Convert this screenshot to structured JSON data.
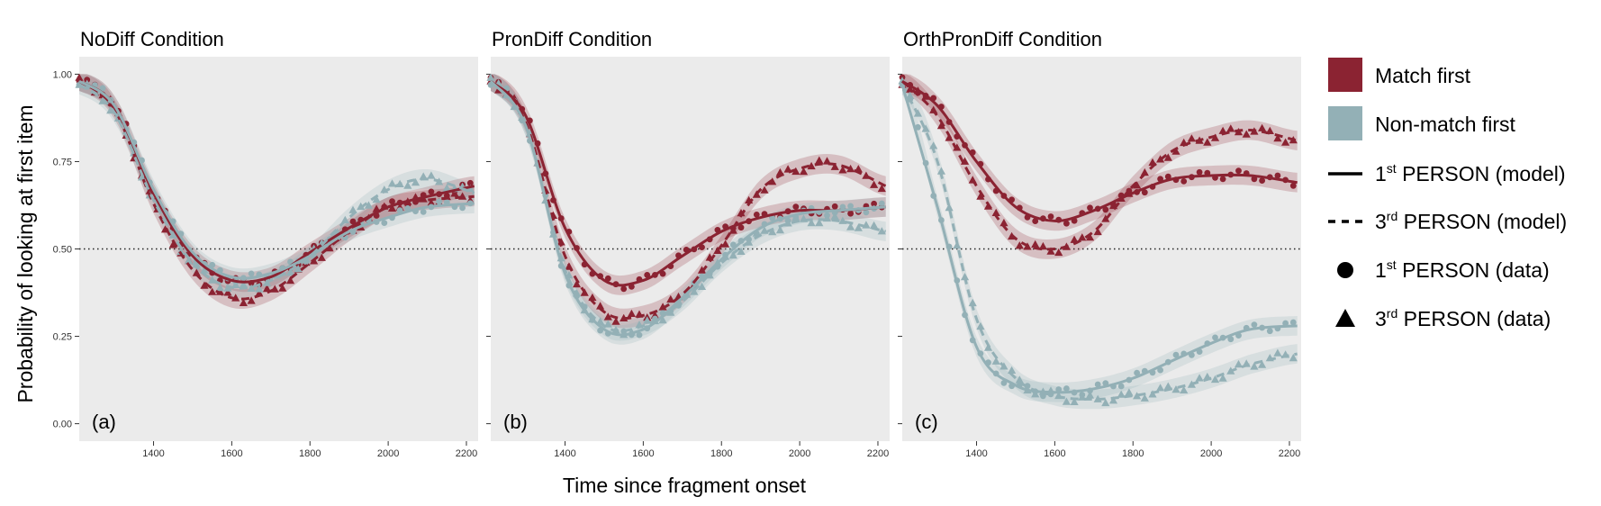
{
  "figure": {
    "xlabel": "Time since fragment onset",
    "ylabel": "Probability of looking at first item"
  },
  "colors": {
    "match": "#8b2332",
    "nonmatch": "#93b0b6",
    "panel_bg": "#ebebeb",
    "ref_line": "#222222"
  },
  "legend": {
    "items": [
      {
        "key": "match",
        "label": "Match first"
      },
      {
        "key": "nonmatch",
        "label": "Non-match first"
      },
      {
        "key": "first_model",
        "prefix": "1",
        "sup": "st",
        "label": " PERSON (model)"
      },
      {
        "key": "third_model",
        "prefix": "3",
        "sup": "rd",
        "label": " PERSON (model)"
      },
      {
        "key": "first_data",
        "prefix": "1",
        "sup": "st",
        "label": " PERSON (data)"
      },
      {
        "key": "third_data",
        "prefix": "3",
        "sup": "rd",
        "label": " PERSON (data)"
      }
    ]
  },
  "chart_data": [
    {
      "type": "line",
      "title": "NoDiff Condition",
      "panel_label": "(a)",
      "xlim": [
        1210,
        2230
      ],
      "ylim": [
        -0.05,
        1.05
      ],
      "x_ticks": [
        1400,
        1600,
        1800,
        2000,
        2200
      ],
      "y_ticks": [
        0.0,
        0.25,
        0.5,
        0.75,
        1.0
      ],
      "y_tick_labels": [
        "0.00",
        "0.25",
        "0.50",
        "0.75",
        "1.00"
      ],
      "hline": 0.5,
      "x": [
        1210,
        1300,
        1400,
        1500,
        1600,
        1700,
        1800,
        1900,
        2000,
        2100,
        2220
      ],
      "series": [
        {
          "group": "match",
          "person": "1st",
          "values": [
            0.98,
            0.91,
            0.66,
            0.48,
            0.41,
            0.42,
            0.49,
            0.56,
            0.62,
            0.65,
            0.68
          ]
        },
        {
          "group": "match",
          "person": "3rd",
          "values": [
            0.98,
            0.9,
            0.63,
            0.44,
            0.36,
            0.38,
            0.46,
            0.55,
            0.62,
            0.64,
            0.65
          ]
        },
        {
          "group": "nonmatch",
          "person": "1st",
          "values": [
            0.98,
            0.91,
            0.67,
            0.49,
            0.42,
            0.43,
            0.48,
            0.55,
            0.59,
            0.62,
            0.63
          ]
        },
        {
          "group": "nonmatch",
          "person": "3rd",
          "values": [
            0.97,
            0.89,
            0.64,
            0.46,
            0.39,
            0.41,
            0.48,
            0.59,
            0.67,
            0.7,
            0.66
          ]
        }
      ]
    },
    {
      "type": "line",
      "title": "PronDiff Condition",
      "panel_label": "(b)",
      "xlim": [
        1210,
        2230
      ],
      "ylim": [
        -0.05,
        1.05
      ],
      "x_ticks": [
        1400,
        1600,
        1800,
        2000,
        2200
      ],
      "y_ticks": [
        0.0,
        0.25,
        0.5,
        0.75,
        1.0
      ],
      "hline": 0.5,
      "x": [
        1210,
        1300,
        1400,
        1500,
        1600,
        1700,
        1800,
        1900,
        2000,
        2100,
        2220
      ],
      "series": [
        {
          "group": "match",
          "person": "1st",
          "values": [
            0.98,
            0.88,
            0.56,
            0.41,
            0.41,
            0.48,
            0.55,
            0.59,
            0.61,
            0.61,
            0.62
          ]
        },
        {
          "group": "match",
          "person": "3rd",
          "values": [
            0.98,
            0.86,
            0.48,
            0.32,
            0.31,
            0.37,
            0.51,
            0.67,
            0.73,
            0.74,
            0.68
          ]
        },
        {
          "group": "nonmatch",
          "person": "1st",
          "values": [
            0.98,
            0.85,
            0.43,
            0.27,
            0.27,
            0.36,
            0.47,
            0.56,
            0.6,
            0.61,
            0.62
          ]
        },
        {
          "group": "nonmatch",
          "person": "3rd",
          "values": [
            0.98,
            0.85,
            0.44,
            0.28,
            0.28,
            0.35,
            0.46,
            0.54,
            0.58,
            0.58,
            0.55
          ]
        }
      ]
    },
    {
      "type": "line",
      "title": "OrthPronDiff Condition",
      "panel_label": "(c)",
      "xlim": [
        1210,
        2230
      ],
      "ylim": [
        -0.05,
        1.05
      ],
      "x_ticks": [
        1400,
        1600,
        1800,
        2000,
        2200
      ],
      "y_ticks": [
        0.0,
        0.25,
        0.5,
        0.75,
        1.0
      ],
      "hline": 0.5,
      "x": [
        1210,
        1300,
        1400,
        1500,
        1600,
        1700,
        1800,
        1900,
        2000,
        2100,
        2220
      ],
      "series": [
        {
          "group": "match",
          "person": "1st",
          "values": [
            0.98,
            0.91,
            0.75,
            0.62,
            0.58,
            0.61,
            0.66,
            0.7,
            0.71,
            0.71,
            0.69
          ]
        },
        {
          "group": "match",
          "person": "3rd",
          "values": [
            0.98,
            0.88,
            0.68,
            0.53,
            0.5,
            0.55,
            0.68,
            0.78,
            0.82,
            0.84,
            0.81
          ]
        },
        {
          "group": "nonmatch",
          "person": "1st",
          "values": [
            0.97,
            0.62,
            0.22,
            0.11,
            0.09,
            0.1,
            0.13,
            0.18,
            0.23,
            0.27,
            0.28
          ]
        },
        {
          "group": "nonmatch",
          "person": "3rd",
          "values": [
            0.97,
            0.75,
            0.3,
            0.13,
            0.08,
            0.07,
            0.08,
            0.1,
            0.13,
            0.17,
            0.2
          ]
        }
      ]
    }
  ]
}
